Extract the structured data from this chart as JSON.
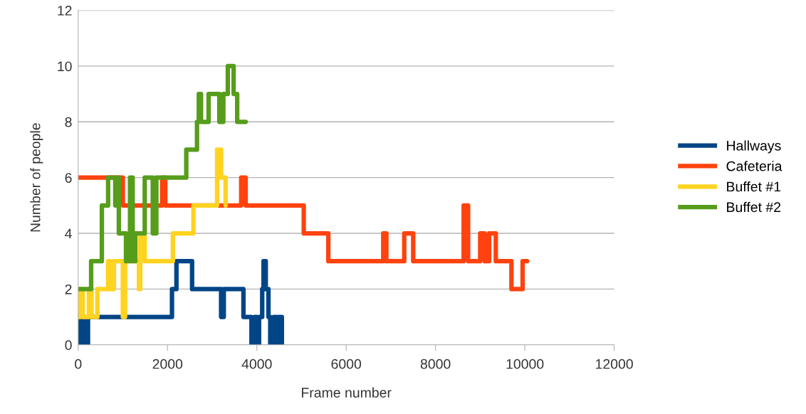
{
  "chart_data": {
    "type": "step",
    "xlabel": "Frame number",
    "ylabel": "Number of people",
    "xlim": [
      0,
      12000
    ],
    "xticks": [
      0,
      2000,
      4000,
      6000,
      8000,
      10000,
      12000
    ],
    "ylim": [
      0,
      12
    ],
    "yticks": [
      0,
      2,
      4,
      6,
      8,
      10,
      12
    ],
    "grid": "y",
    "legend": "right",
    "marker": "none",
    "line_style": "solid",
    "series": [
      {
        "name": "Hallways",
        "color": "#004586",
        "x": [
          0,
          20,
          60,
          150,
          220,
          2100,
          2200,
          2550,
          3200,
          3260,
          3700,
          3880,
          3950,
          4000,
          4050,
          4120,
          4150,
          4200,
          4260,
          4300,
          4380,
          4430,
          4480,
          4560
        ],
        "values": [
          1,
          0,
          1,
          0,
          1,
          2,
          3,
          2,
          1,
          2,
          1,
          0,
          1,
          0,
          1,
          2,
          3,
          2,
          1,
          0,
          1,
          0,
          1,
          0
        ]
      },
      {
        "name": "Cafeteria",
        "color": "#ff420e",
        "x": [
          0,
          1000,
          1880,
          1950,
          3650,
          3750,
          5050,
          5600,
          6830,
          6900,
          7300,
          7500,
          8630,
          8730,
          9000,
          9100,
          9200,
          9350,
          9700,
          9950,
          10050
        ],
        "values": [
          6,
          5,
          6,
          5,
          6,
          5,
          4,
          3,
          4,
          3,
          4,
          3,
          5,
          3,
          4,
          3,
          4,
          3,
          2,
          3,
          3
        ]
      },
      {
        "name": "Buffet #1",
        "color": "#ffd320",
        "x": [
          0,
          50,
          100,
          240,
          300,
          430,
          670,
          720,
          800,
          1000,
          1050,
          1360,
          1390,
          1490,
          2120,
          2580,
          3110,
          3200,
          3300
        ],
        "values": [
          1,
          2,
          1,
          2,
          1,
          2,
          3,
          2,
          3,
          1,
          3,
          2,
          4,
          3,
          4,
          5,
          7,
          6,
          5
        ]
      },
      {
        "name": "Buffet #2",
        "color": "#579d1c",
        "x": [
          0,
          290,
          530,
          670,
          830,
          870,
          910,
          1070,
          1160,
          1220,
          1280,
          1490,
          1670,
          1750,
          1910,
          2420,
          2660,
          2700,
          2750,
          2920,
          3160,
          3250,
          3350,
          3480,
          3560,
          3750
        ],
        "values": [
          2,
          3,
          5,
          6,
          5,
          6,
          4,
          3,
          6,
          3,
          4,
          6,
          4,
          6,
          6,
          7,
          8,
          9,
          8,
          9,
          8,
          9,
          10,
          9,
          8,
          8
        ]
      }
    ]
  }
}
